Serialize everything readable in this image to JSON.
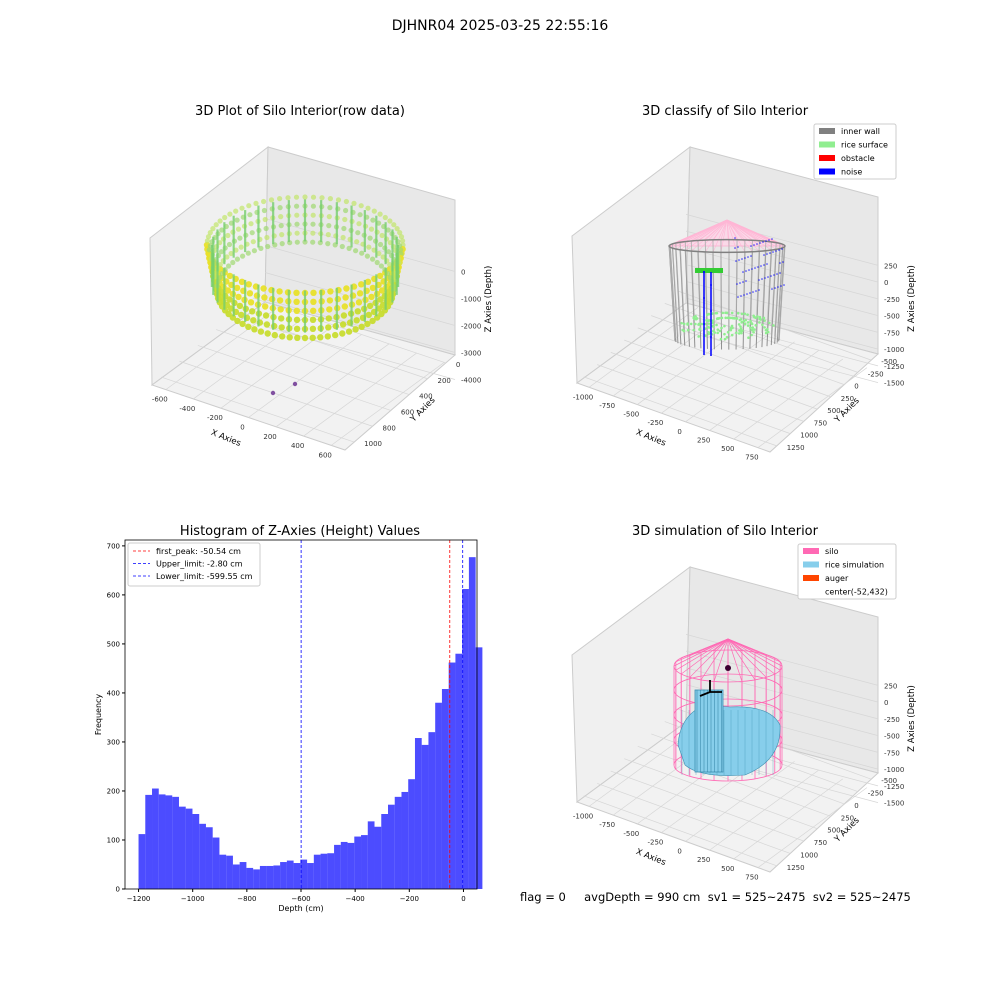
{
  "suptitle": "DJHNR04 2025-03-25 22:55:16",
  "footer": "flag = 0     avgDepth = 990 cm  sv1 = 525~2475  sv2 = 525~2475",
  "colors": {
    "silo": "#ff69b4",
    "rice_simulation": "#87ceeb",
    "auger": "#ff4500",
    "inner_wall": "#808080",
    "rice_surface": "#90ee90",
    "obstacle": "#ff0000",
    "noise": "#0000ff",
    "histogram": "#0000ff"
  },
  "chart_data": [
    {
      "type": "scatter",
      "title": "3D Plot of Silo Interior(row data)",
      "xlabel": "X Axies",
      "ylabel": "Y Axies",
      "zlabel": "Z Axies (Depth)",
      "x_ticks": [
        "-600",
        "-400",
        "-200",
        "0",
        "200",
        "400",
        "600"
      ],
      "y_ticks": [
        "0",
        "200",
        "400",
        "600",
        "800",
        "1000"
      ],
      "z_ticks": [
        "0",
        "-1000",
        "-2000",
        "-3000",
        "-4000"
      ]
    },
    {
      "type": "scatter",
      "title": "3D classify of Silo Interior",
      "xlabel": "X Axies",
      "ylabel": "Y Axies",
      "zlabel": "Z Axies (Depth)",
      "x_ticks": [
        "-1000",
        "-750",
        "-500",
        "-250",
        "0",
        "250",
        "500",
        "750"
      ],
      "y_ticks": [
        "-500",
        "-250",
        "0",
        "250",
        "500",
        "750",
        "1000",
        "1250"
      ],
      "z_ticks": [
        "250",
        "0",
        "-250",
        "-500",
        "-750",
        "-1000",
        "-1250",
        "-1500"
      ],
      "legend": [
        "inner wall",
        "rice surface",
        "obstacle",
        "noise"
      ],
      "legend_position": "top-right"
    },
    {
      "type": "bar",
      "title": "Histogram of Z-Axies (Height) Values",
      "xlabel": "Depth (cm)",
      "ylabel": "Frequency",
      "xlim": [
        -1250,
        50
      ],
      "ylim": [
        0,
        712
      ],
      "x_ticks": [
        -1200,
        -1000,
        -800,
        -600,
        -400,
        -200,
        0
      ],
      "x_tick_labels": [
        "−1200",
        "−1000",
        "−800",
        "−600",
        "−400",
        "−200",
        "0"
      ],
      "y_ticks": [
        0,
        100,
        200,
        300,
        400,
        500,
        600,
        700
      ],
      "bin_start": -1200,
      "bin_width": 24.9,
      "values": [
        112,
        192,
        205,
        193,
        191,
        188,
        168,
        164,
        153,
        133,
        126,
        105,
        70,
        68,
        50,
        55,
        43,
        40,
        47,
        47,
        48,
        55,
        58,
        53,
        60,
        53,
        70,
        72,
        73,
        90,
        96,
        94,
        107,
        110,
        138,
        127,
        153,
        172,
        188,
        198,
        224,
        308,
        294,
        320,
        380,
        408,
        462,
        480,
        612,
        677,
        493
      ],
      "vlines": [
        {
          "x": -50.54,
          "label": "first_peak: -50.54 cm",
          "color": "#ff0000"
        },
        {
          "x": -2.8,
          "label": "Upper_limit: -2.80 cm",
          "color": "#0000ff"
        },
        {
          "x": -599.55,
          "label": "Lower_limit: -599.55 cm",
          "color": "#0000ff"
        }
      ],
      "legend_position": "upper left"
    },
    {
      "type": "scatter",
      "title": "3D simulation of Silo Interior",
      "xlabel": "X Axies",
      "ylabel": "Y Axies",
      "zlabel": "Z Axies (Depth)",
      "x_ticks": [
        "-1000",
        "-750",
        "-500",
        "-250",
        "0",
        "250",
        "500",
        "750"
      ],
      "y_ticks": [
        "-500",
        "-250",
        "0",
        "250",
        "500",
        "750",
        "1000",
        "1250"
      ],
      "z_ticks": [
        "250",
        "0",
        "-250",
        "-500",
        "-750",
        "-1000",
        "-1250",
        "-1500"
      ],
      "legend": [
        "silo",
        "rice simulation",
        "auger",
        "center(-52,432)"
      ],
      "legend_position": "top-right"
    }
  ]
}
